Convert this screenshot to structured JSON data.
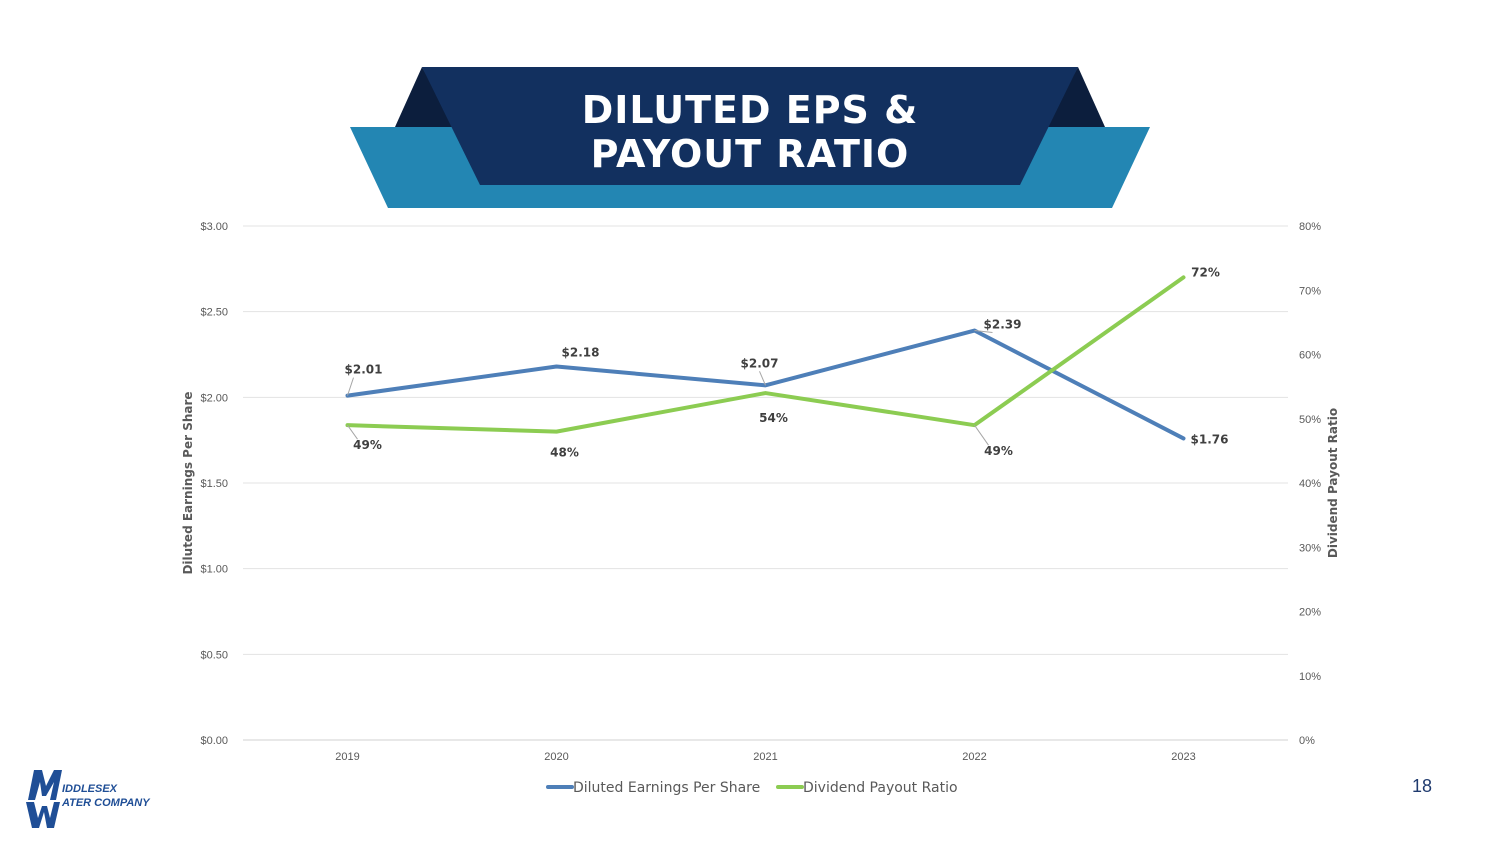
{
  "slide": {
    "title_line1": "DILUTED EPS &",
    "title_line2": "PAYOUT RATIO",
    "page_number": "18"
  },
  "logo": {
    "line1": "IDDLESEX",
    "line2": "ATER COMPANY",
    "icon": "mw-monogram-icon"
  },
  "colors": {
    "banner_dark": "#12305f",
    "banner_light": "#2386b3",
    "banner_shadow": "#0c1e3d",
    "eps": "#4e7fb8",
    "payout": "#8ccc52"
  },
  "chart_data": {
    "type": "line",
    "categories": [
      "2019",
      "2020",
      "2021",
      "2022",
      "2023"
    ],
    "series": [
      {
        "name": "Diluted Earnings Per Share",
        "axis": "left",
        "values": [
          2.01,
          2.18,
          2.07,
          2.39,
          1.76
        ],
        "labels": [
          "$2.01",
          "$2.18",
          "$2.07",
          "$2.39",
          "$1.76"
        ]
      },
      {
        "name": "Dividend Payout Ratio",
        "axis": "right",
        "values": [
          49,
          48,
          54,
          49,
          72
        ],
        "labels": [
          "49%",
          "48%",
          "54%",
          "49%",
          "72%"
        ]
      }
    ],
    "ylabel": "Diluted Earnings Per Share",
    "y2label": "Dividend Payout Ratio",
    "ylim": [
      0,
      3
    ],
    "y2lim": [
      0,
      80
    ],
    "yticks": [
      "$0.00",
      "$0.50",
      "$1.00",
      "$1.50",
      "$2.00",
      "$2.50",
      "$3.00"
    ],
    "y2ticks": [
      "0%",
      "10%",
      "20%",
      "30%",
      "40%",
      "50%",
      "60%",
      "70%",
      "80%"
    ],
    "grid": true,
    "legend": "bottom"
  }
}
